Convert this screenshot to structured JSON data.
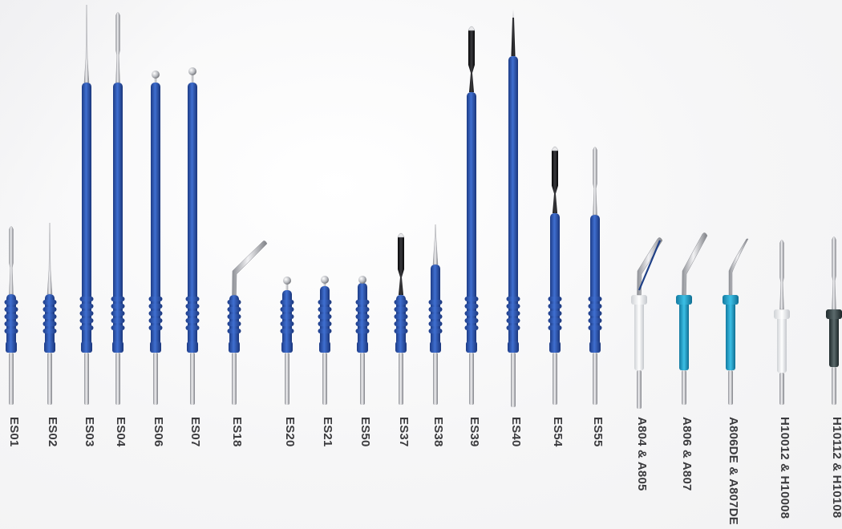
{
  "colors": {
    "handle_blue": "#2a4fa3",
    "handle_blue_light": "#3b6cc7",
    "steel": "#c8c9cc",
    "black_coating": "#1a1a1c",
    "white_handle": "#f3f3f3",
    "cyan_handle": "#1f9fc8",
    "grey_handle": "#3c4a4c",
    "label_text": "#3b3b3e"
  },
  "electrodes": [
    {
      "label": "ES01",
      "tip": "blade",
      "handle": "short-blue"
    },
    {
      "label": "ES02",
      "tip": "needle",
      "handle": "short-blue"
    },
    {
      "label": "ES03",
      "tip": "needle",
      "handle": "long-blue"
    },
    {
      "label": "ES04",
      "tip": "blade",
      "handle": "long-blue"
    },
    {
      "label": "ES06",
      "tip": "ball",
      "handle": "long-blue"
    },
    {
      "label": "ES07",
      "tip": "ball",
      "handle": "long-blue"
    },
    {
      "label": "ES18",
      "tip": "angled-blade",
      "handle": "short-blue"
    },
    {
      "label": "ES20",
      "tip": "ball",
      "handle": "short-blue"
    },
    {
      "label": "ES21",
      "tip": "ball",
      "handle": "short-blue"
    },
    {
      "label": "ES50",
      "tip": "ball",
      "handle": "short-blue"
    },
    {
      "label": "ES37",
      "tip": "coated-blade",
      "handle": "short-blue"
    },
    {
      "label": "ES38",
      "tip": "needle",
      "handle": "short-blue"
    },
    {
      "label": "ES39",
      "tip": "coated-blade",
      "handle": "long-blue"
    },
    {
      "label": "ES40",
      "tip": "coated-needle",
      "handle": "long-blue"
    },
    {
      "label": "ES54",
      "tip": "coated-blade",
      "handle": "mid-blue"
    },
    {
      "label": "ES55",
      "tip": "blade",
      "handle": "mid-blue"
    },
    {
      "label": "A804 & A805",
      "tip": "angled-blade",
      "handle": "white"
    },
    {
      "label": "A806 & A807",
      "tip": "angled-blade",
      "handle": "cyan"
    },
    {
      "label": "A806DE & A807DE",
      "tip": "hook",
      "handle": "cyan"
    },
    {
      "label": "H10012 & H10008",
      "tip": "blade",
      "handle": "white"
    },
    {
      "label": "H10112 & H10108",
      "tip": "blade",
      "handle": "grey"
    }
  ]
}
